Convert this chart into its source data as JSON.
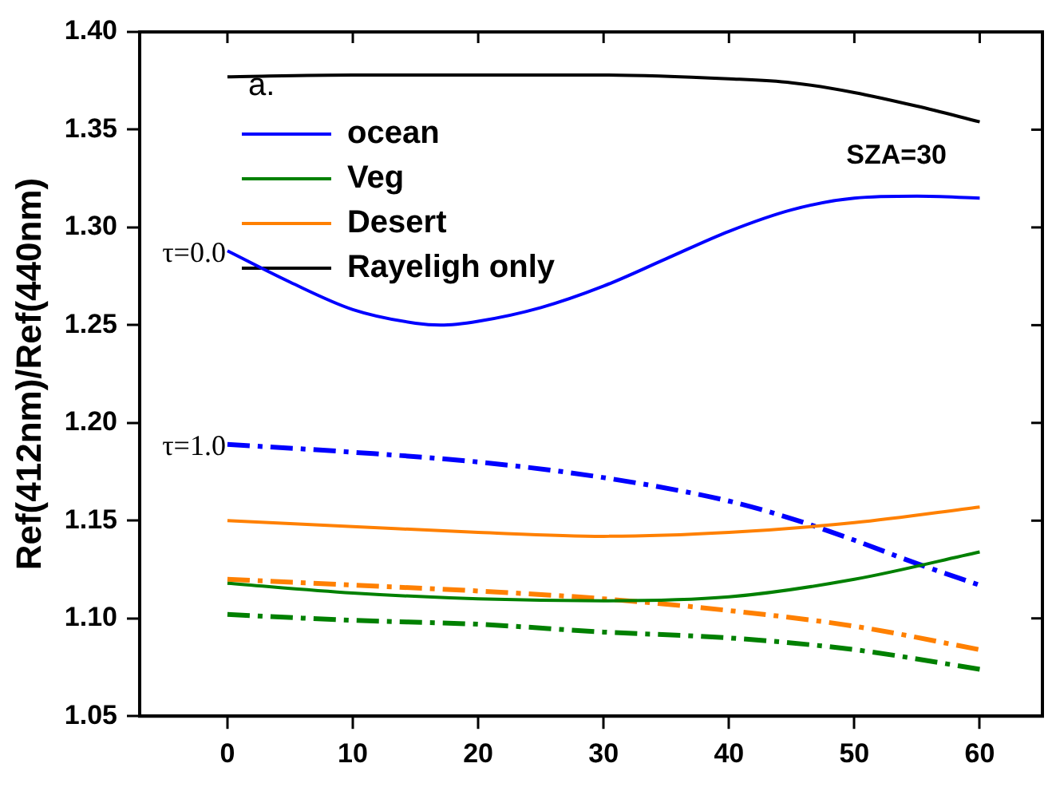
{
  "chart_data": {
    "type": "line",
    "ylabel": "Ref(412nm)/Ref(440nm)",
    "xlim": [
      -7,
      65
    ],
    "xticks": [
      0,
      10,
      20,
      30,
      40,
      50,
      60
    ],
    "ylim": [
      1.05,
      1.4
    ],
    "yticks": [
      {
        "value": 1.05,
        "label": "1.05"
      },
      {
        "value": 1.1,
        "label": "1.10"
      },
      {
        "value": 1.15,
        "label": "1.15"
      },
      {
        "value": 1.2,
        "label": "1.20"
      },
      {
        "value": 1.25,
        "label": "1.25"
      },
      {
        "value": 1.3,
        "label": "1.30"
      },
      {
        "value": 1.35,
        "label": "1.35"
      },
      {
        "value": 1.4,
        "label": "1.40"
      }
    ],
    "legend": "top left",
    "marker": "none",
    "series": [
      {
        "name": "ocean",
        "color": "#0000ff",
        "line_style": "solid",
        "x": [
          0,
          5,
          10,
          15,
          17,
          20,
          25,
          30,
          35,
          40,
          45,
          50,
          55,
          60
        ],
        "values": [
          1.288,
          1.272,
          1.258,
          1.251,
          1.25,
          1.252,
          1.259,
          1.27,
          1.284,
          1.298,
          1.309,
          1.315,
          1.316,
          1.315
        ]
      },
      {
        "name": "Veg",
        "color": "#008000",
        "line_style": "solid",
        "x": [
          0,
          10,
          20,
          30,
          40,
          50,
          60
        ],
        "values": [
          1.118,
          1.113,
          1.11,
          1.109,
          1.111,
          1.12,
          1.134
        ]
      },
      {
        "name": "Desert",
        "color": "#ff8000",
        "line_style": "solid",
        "x": [
          0,
          10,
          20,
          30,
          40,
          50,
          60
        ],
        "values": [
          1.15,
          1.147,
          1.144,
          1.142,
          1.144,
          1.149,
          1.157
        ]
      },
      {
        "name": "Rayeligh only",
        "color": "#000000",
        "line_style": "solid",
        "x": [
          0,
          10,
          20,
          30,
          40,
          45,
          50,
          55,
          60
        ],
        "values": [
          1.377,
          1.378,
          1.378,
          1.378,
          1.376,
          1.374,
          1.369,
          1.362,
          1.354
        ]
      },
      {
        "color": "#0000ff",
        "line_style": "dashed",
        "x": [
          0,
          10,
          20,
          30,
          40,
          45,
          50,
          55,
          60
        ],
        "values": [
          1.189,
          1.185,
          1.18,
          1.172,
          1.16,
          1.151,
          1.14,
          1.128,
          1.117
        ]
      },
      {
        "color": "#ff8000",
        "line_style": "dashed",
        "x": [
          0,
          10,
          20,
          30,
          40,
          50,
          60
        ],
        "values": [
          1.12,
          1.117,
          1.114,
          1.11,
          1.104,
          1.096,
          1.084
        ]
      },
      {
        "color": "#008000",
        "line_style": "dashed",
        "x": [
          0,
          10,
          20,
          30,
          40,
          50,
          60
        ],
        "values": [
          1.102,
          1.099,
          1.097,
          1.093,
          1.09,
          1.084,
          1.074
        ]
      }
    ],
    "annotations": [
      "a.",
      "SZA=30",
      {
        "text": "τ=0.0",
        "x": 0,
        "y": 1.288
      },
      {
        "text": "τ=1.0",
        "x": 0,
        "y": 1.189
      }
    ]
  }
}
